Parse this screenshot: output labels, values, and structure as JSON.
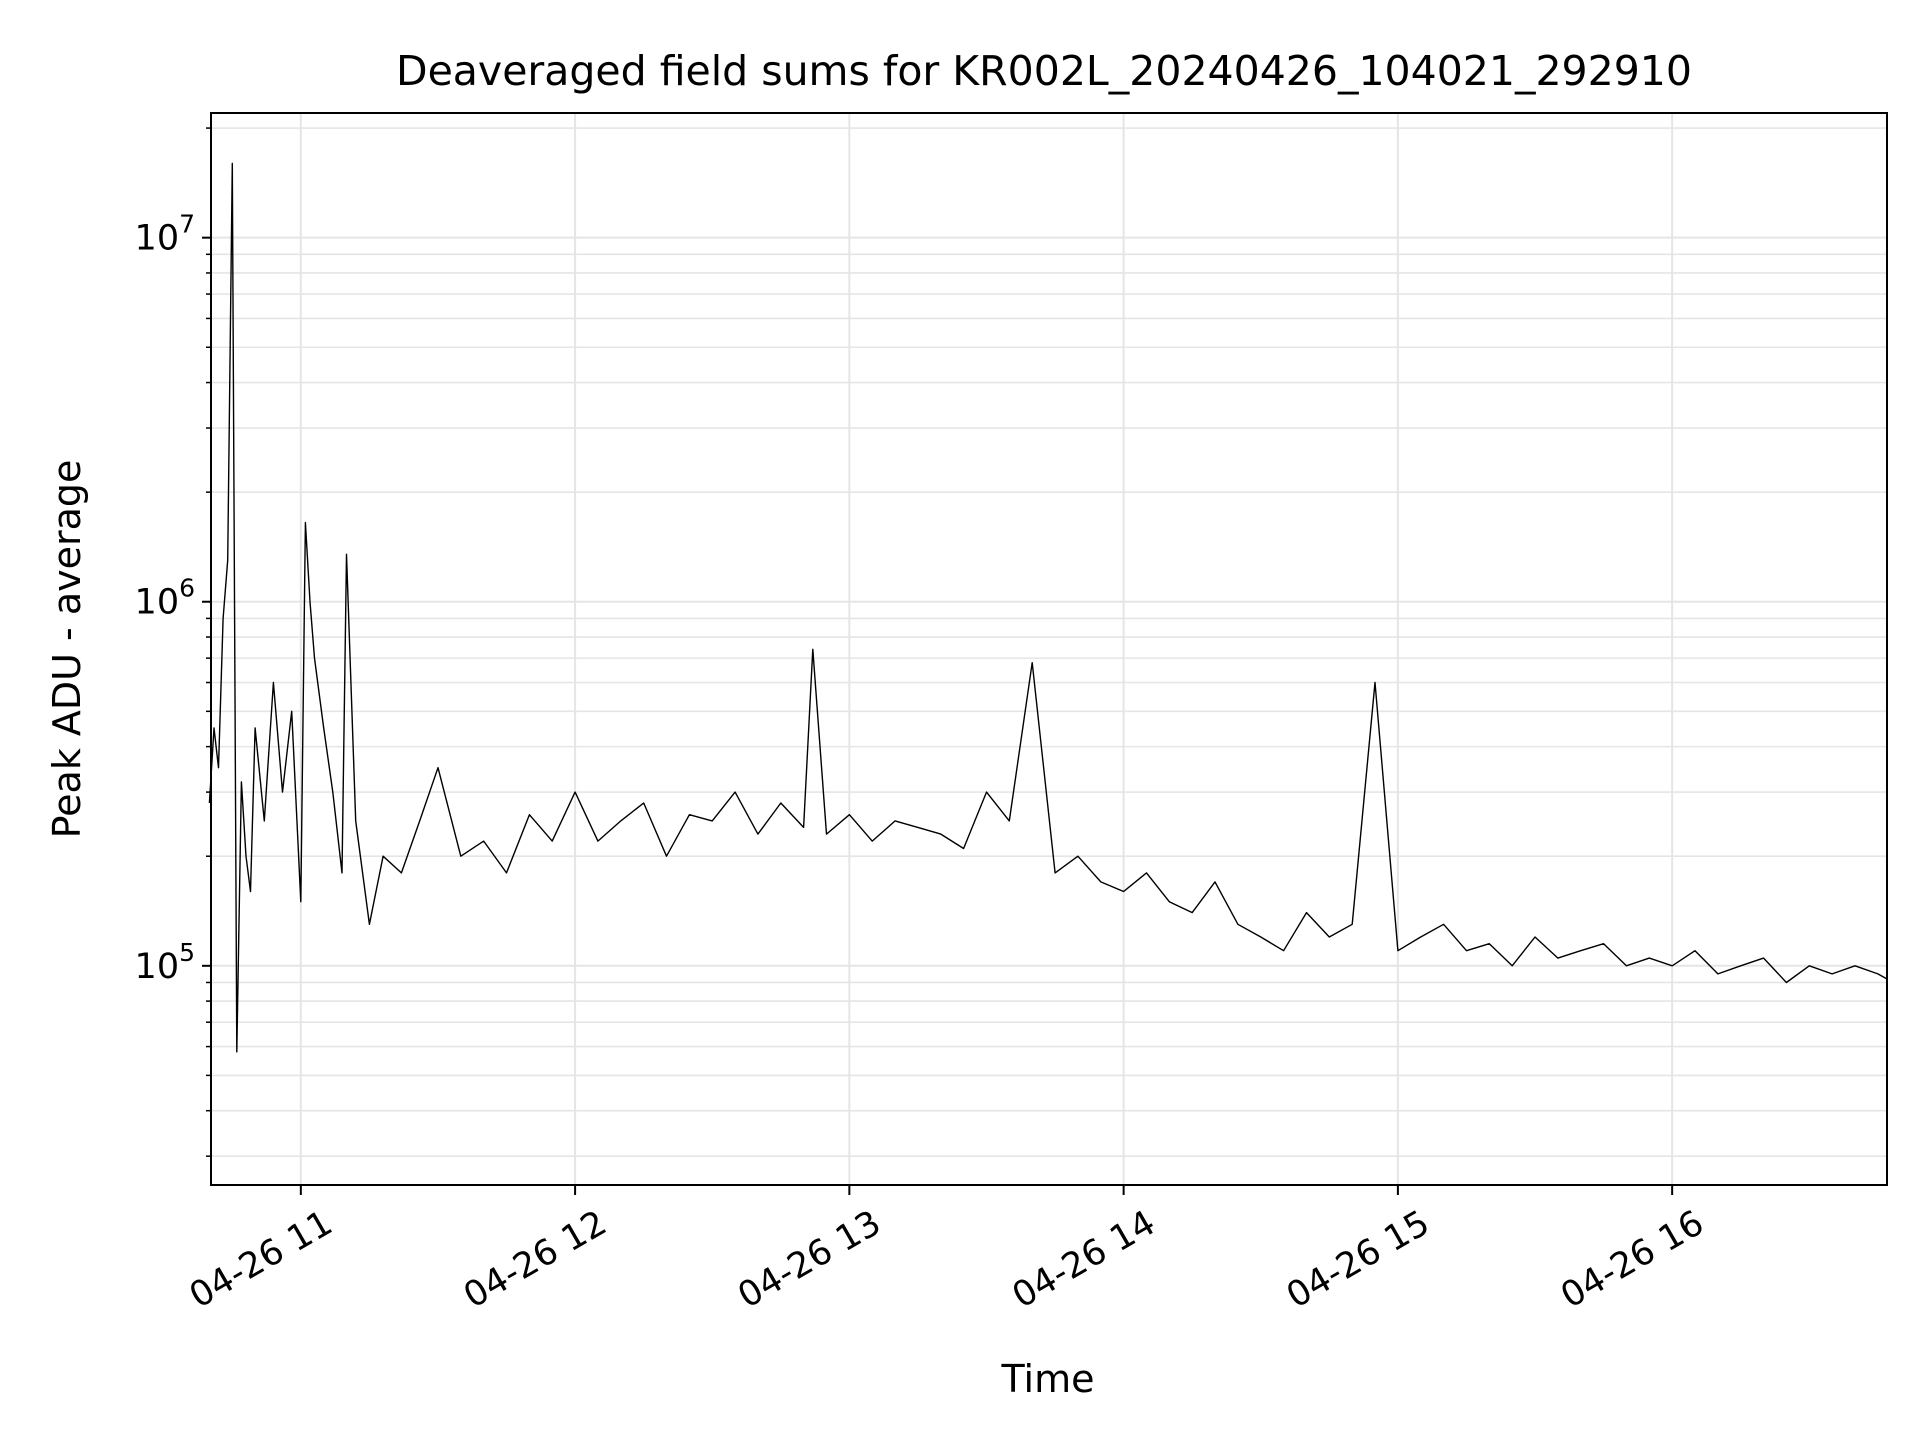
{
  "chart_data": {
    "type": "line",
    "title": "Deaveraged field sums for KR002L_20240426_104021_292910",
    "xlabel": "Time",
    "ylabel": "Peak ADU - average",
    "x_range": [
      "2024-04-26 10:40:21",
      "2024-04-26 16:47:00"
    ],
    "y_scale": "log",
    "ylim": [
      25000,
      22000000
    ],
    "x_ticks": [
      {
        "value": "2024-04-26 11:00",
        "label": "04-26 11"
      },
      {
        "value": "2024-04-26 12:00",
        "label": "04-26 12"
      },
      {
        "value": "2024-04-26 13:00",
        "label": "04-26 13"
      },
      {
        "value": "2024-04-26 14:00",
        "label": "04-26 14"
      },
      {
        "value": "2024-04-26 15:00",
        "label": "04-26 15"
      },
      {
        "value": "2024-04-26 16:00",
        "label": "04-26 16"
      }
    ],
    "y_ticks": [
      {
        "value": 100000,
        "base": "10",
        "exp": "5"
      },
      {
        "value": 1000000,
        "base": "10",
        "exp": "6"
      },
      {
        "value": 10000000,
        "base": "10",
        "exp": "7"
      }
    ],
    "grid": true,
    "series": [
      {
        "color": "#000000",
        "x": [
          "10:40",
          "10:41",
          "10:42",
          "10:43",
          "10:44",
          "10:45",
          "10:46",
          "10:47",
          "10:48",
          "10:49",
          "10:50",
          "10:52",
          "10:54",
          "10:56",
          "10:58",
          "11:00",
          "11:01",
          "11:02",
          "11:03",
          "11:05",
          "11:07",
          "11:09",
          "11:10",
          "11:12",
          "11:15",
          "11:18",
          "11:22",
          "11:26",
          "11:30",
          "11:35",
          "11:40",
          "11:45",
          "11:50",
          "11:55",
          "12:00",
          "12:05",
          "12:10",
          "12:15",
          "12:20",
          "12:25",
          "12:30",
          "12:35",
          "12:40",
          "12:45",
          "12:50",
          "12:52",
          "12:55",
          "13:00",
          "13:05",
          "13:10",
          "13:15",
          "13:20",
          "13:25",
          "13:30",
          "13:35",
          "13:40",
          "13:45",
          "13:50",
          "13:55",
          "14:00",
          "14:05",
          "14:10",
          "14:15",
          "14:20",
          "14:25",
          "14:30",
          "14:35",
          "14:40",
          "14:45",
          "14:50",
          "14:55",
          "15:00",
          "15:05",
          "15:10",
          "15:15",
          "15:20",
          "15:25",
          "15:30",
          "15:35",
          "15:40",
          "15:45",
          "15:50",
          "15:55",
          "16:00",
          "16:05",
          "16:10",
          "16:15",
          "16:20",
          "16:25",
          "16:30",
          "16:35",
          "16:40",
          "16:45",
          "16:47"
        ],
        "y": [
          280000,
          450000,
          350000,
          900000,
          1300000,
          16000000,
          58000,
          320000,
          200000,
          160000,
          450000,
          250000,
          600000,
          300000,
          500000,
          150000,
          1650000,
          1000000,
          700000,
          450000,
          300000,
          180000,
          1350000,
          250000,
          130000,
          200000,
          180000,
          250000,
          350000,
          200000,
          220000,
          180000,
          260000,
          220000,
          300000,
          220000,
          250000,
          280000,
          200000,
          260000,
          250000,
          300000,
          230000,
          280000,
          240000,
          740000,
          230000,
          260000,
          220000,
          250000,
          240000,
          230000,
          210000,
          300000,
          250000,
          680000,
          180000,
          200000,
          170000,
          160000,
          180000,
          150000,
          140000,
          170000,
          130000,
          120000,
          110000,
          140000,
          120000,
          130000,
          600000,
          110000,
          120000,
          130000,
          110000,
          115000,
          100000,
          120000,
          105000,
          110000,
          115000,
          100000,
          105000,
          100000,
          110000,
          95000,
          100000,
          105000,
          90000,
          100000,
          95000,
          100000,
          95000,
          92000
        ]
      }
    ]
  }
}
